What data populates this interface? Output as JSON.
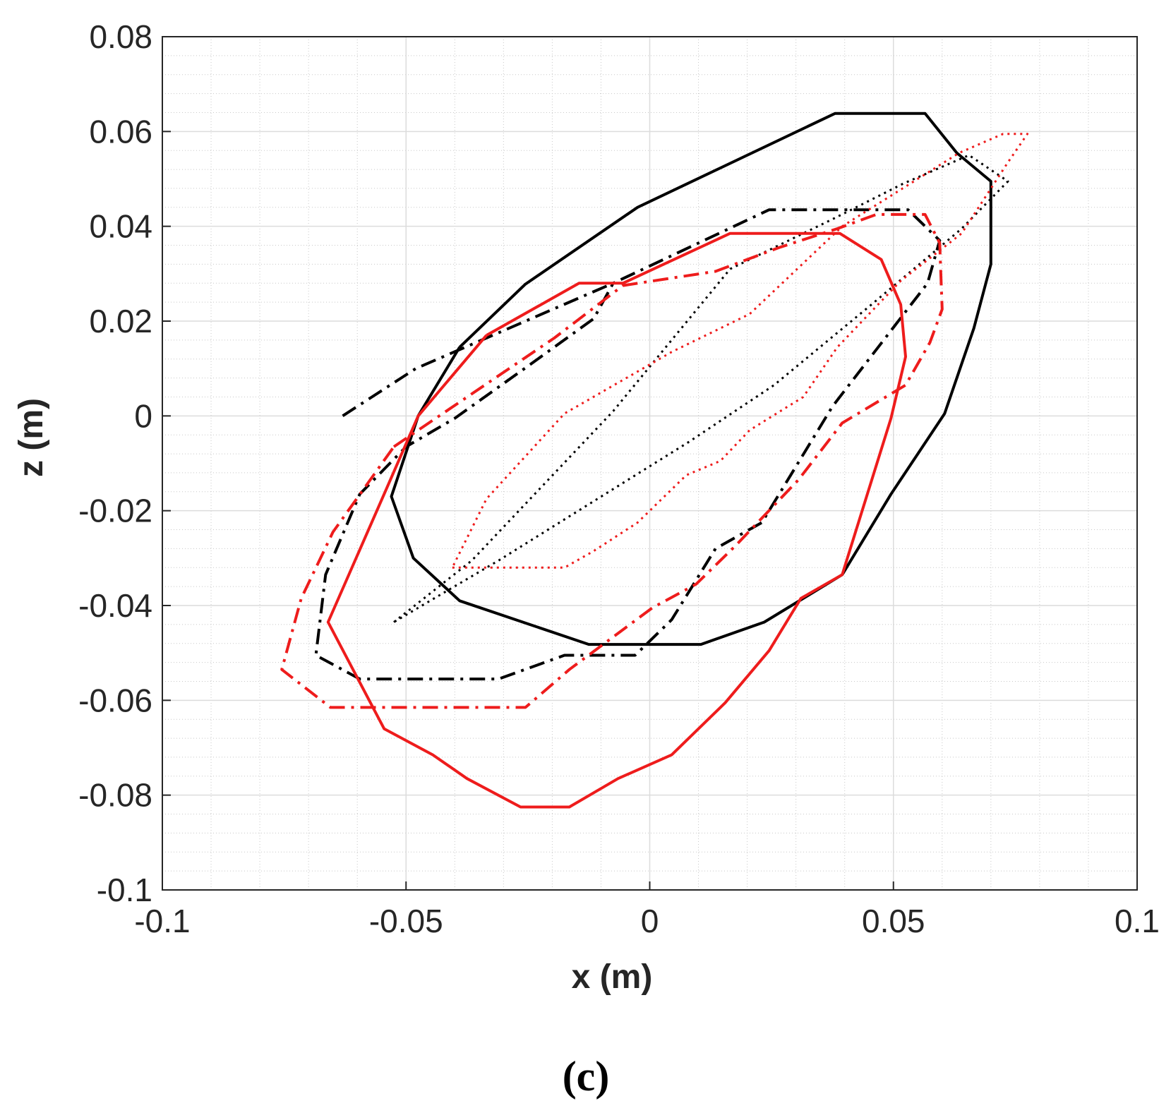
{
  "panel_label": "(c)",
  "chart_data": {
    "type": "line",
    "title": "",
    "xlabel": "x (m)",
    "ylabel": "z (m)",
    "xlim": [
      -0.1,
      0.1
    ],
    "ylim": [
      -0.1,
      0.08
    ],
    "grid": true,
    "minor_grid": true,
    "x_ticks": [
      -0.1,
      -0.05,
      0,
      0.05,
      0.1
    ],
    "x_tick_labels": [
      "-0.1",
      "-0.05",
      "0",
      "0.05",
      "0.1"
    ],
    "y_ticks": [
      -0.1,
      -0.08,
      -0.06,
      -0.04,
      -0.02,
      0,
      0.02,
      0.04,
      0.06,
      0.08
    ],
    "y_tick_labels": [
      "-0.1",
      "-0.08",
      "-0.06",
      "-0.04",
      "-0.02",
      "0",
      "0.02",
      "0.04",
      "0.06",
      "0.08"
    ],
    "series": [
      {
        "color": "#000000",
        "style": "solid",
        "points": [
          [
            -0.039,
            0.0145
          ],
          [
            -0.0255,
            0.0278
          ],
          [
            -0.0025,
            0.044
          ],
          [
            0.038,
            0.0638
          ],
          [
            0.0565,
            0.0638
          ],
          [
            0.063,
            0.0555
          ],
          [
            0.07,
            0.0495
          ],
          [
            0.07,
            0.032
          ],
          [
            0.0665,
            0.0185
          ],
          [
            0.0605,
            0.0005
          ],
          [
            0.0495,
            -0.0165
          ],
          [
            0.0395,
            -0.0335
          ],
          [
            0.0235,
            -0.0435
          ],
          [
            0.0105,
            -0.0482
          ],
          [
            -0.0125,
            -0.0482
          ],
          [
            -0.039,
            -0.039
          ],
          [
            -0.0485,
            -0.03
          ],
          [
            -0.053,
            -0.017
          ],
          [
            -0.0475,
            0.0
          ],
          [
            -0.039,
            0.0145
          ]
        ]
      },
      {
        "color": "#000000",
        "style": "dashdot",
        "points": [
          [
            -0.063,
            0.0
          ],
          [
            -0.048,
            0.01
          ],
          [
            -0.0075,
            0.028
          ],
          [
            0.0245,
            0.0435
          ],
          [
            0.053,
            0.0435
          ],
          [
            0.0595,
            0.037
          ],
          [
            0.057,
            0.028
          ],
          [
            0.0375,
            0.002
          ],
          [
            0.023,
            -0.0225
          ],
          [
            0.0135,
            -0.028
          ],
          [
            0.0045,
            -0.043
          ],
          [
            -0.003,
            -0.0505
          ],
          [
            -0.0175,
            -0.0505
          ],
          [
            -0.031,
            -0.0555
          ],
          [
            -0.0595,
            -0.0555
          ],
          [
            -0.0685,
            -0.0505
          ],
          [
            -0.0665,
            -0.0335
          ],
          [
            -0.0595,
            -0.0165
          ],
          [
            -0.05,
            -0.0065
          ],
          [
            -0.04,
            -0.0005
          ],
          [
            -0.025,
            0.0105
          ],
          [
            -0.0115,
            0.0205
          ],
          [
            -0.0075,
            0.028
          ]
        ]
      },
      {
        "color": "#000000",
        "style": "dotted",
        "points": [
          [
            -0.0525,
            -0.0435
          ],
          [
            -0.0365,
            -0.0305
          ],
          [
            -0.0075,
            0.001
          ],
          [
            0.0165,
            0.031
          ],
          [
            0.0375,
            0.0415
          ],
          [
            0.052,
            0.049
          ],
          [
            0.0655,
            0.055
          ],
          [
            0.0735,
            0.0495
          ],
          [
            0.064,
            0.0395
          ],
          [
            0.0455,
            0.0235
          ],
          [
            0.0255,
            0.0065
          ],
          [
            0.008,
            -0.0055
          ],
          [
            -0.0115,
            -0.018
          ],
          [
            -0.031,
            -0.0305
          ],
          [
            -0.0525,
            -0.0435
          ]
        ]
      },
      {
        "color": "#ee1c1c",
        "style": "solid",
        "points": [
          [
            -0.0335,
            0.017
          ],
          [
            -0.0145,
            0.028
          ],
          [
            -0.0055,
            0.028
          ],
          [
            0.0165,
            0.0385
          ],
          [
            0.039,
            0.0385
          ],
          [
            0.0475,
            0.033
          ],
          [
            0.0515,
            0.0235
          ],
          [
            0.0525,
            0.0125
          ],
          [
            0.0495,
            -0.0005
          ],
          [
            0.0395,
            -0.0335
          ],
          [
            0.031,
            -0.0385
          ],
          [
            0.0245,
            -0.0495
          ],
          [
            0.0155,
            -0.0605
          ],
          [
            0.0045,
            -0.0715
          ],
          [
            -0.0065,
            -0.0765
          ],
          [
            -0.0165,
            -0.0825
          ],
          [
            -0.0265,
            -0.0825
          ],
          [
            -0.0375,
            -0.0765
          ],
          [
            -0.0445,
            -0.0715
          ],
          [
            -0.0545,
            -0.066
          ],
          [
            -0.066,
            -0.0435
          ],
          [
            -0.0545,
            -0.0165
          ],
          [
            -0.0475,
            0.0
          ],
          [
            -0.0335,
            0.017
          ]
        ]
      },
      {
        "color": "#ee1c1c",
        "style": "dashdot",
        "points": [
          [
            -0.0525,
            -0.0065
          ],
          [
            -0.0475,
            -0.003
          ],
          [
            -0.0195,
            0.0165
          ],
          [
            -0.0055,
            0.0275
          ],
          [
            0.0135,
            0.0305
          ],
          [
            0.0265,
            0.0355
          ],
          [
            0.0385,
            0.0395
          ],
          [
            0.0465,
            0.0425
          ],
          [
            0.0565,
            0.0425
          ],
          [
            0.0595,
            0.0365
          ],
          [
            0.06,
            0.0225
          ],
          [
            0.0575,
            0.0155
          ],
          [
            0.0525,
            0.0065
          ],
          [
            0.0395,
            -0.0015
          ],
          [
            0.0305,
            -0.0135
          ],
          [
            0.0175,
            -0.0275
          ],
          [
            0.0095,
            -0.0355
          ],
          [
            0.0005,
            -0.0405
          ],
          [
            -0.0165,
            -0.0535
          ],
          [
            -0.0255,
            -0.0615
          ],
          [
            -0.0655,
            -0.0615
          ],
          [
            -0.0755,
            -0.0535
          ],
          [
            -0.0715,
            -0.0385
          ],
          [
            -0.065,
            -0.0245
          ],
          [
            -0.0525,
            -0.0065
          ]
        ]
      },
      {
        "color": "#ee1c1c",
        "style": "dotted",
        "points": [
          [
            -0.0405,
            -0.032
          ],
          [
            -0.0175,
            -0.032
          ],
          [
            -0.0115,
            -0.0285
          ],
          [
            -0.0025,
            -0.0225
          ],
          [
            0.0075,
            -0.0125
          ],
          [
            0.0145,
            -0.0095
          ],
          [
            0.0205,
            -0.003
          ],
          [
            0.0315,
            0.004
          ],
          [
            0.0385,
            0.0145
          ],
          [
            0.0515,
            0.0285
          ],
          [
            0.064,
            0.0385
          ],
          [
            0.0735,
            0.0535
          ],
          [
            0.0775,
            0.0595
          ],
          [
            0.0725,
            0.0595
          ],
          [
            0.0635,
            0.0555
          ],
          [
            0.0395,
            0.04
          ],
          [
            0.0205,
            0.0215
          ],
          [
            0.0045,
            0.0135
          ],
          [
            -0.0175,
            0.0005
          ],
          [
            -0.0335,
            -0.0175
          ],
          [
            -0.0405,
            -0.032
          ]
        ]
      }
    ]
  }
}
